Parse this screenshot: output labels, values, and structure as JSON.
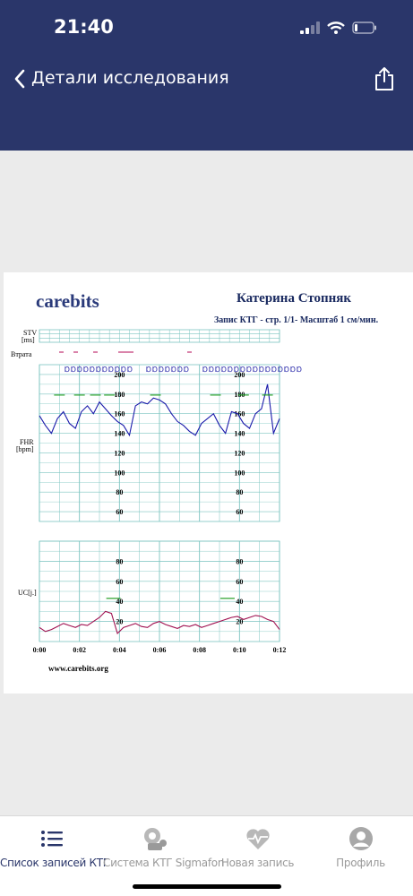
{
  "status": {
    "time": "21:40"
  },
  "nav": {
    "title": "Детали исследования"
  },
  "report": {
    "logo": "carebits",
    "patient_name": "Катерина  Стопняк",
    "subtitle": "Запис КТГ  - стр. 1/1- Масштаб 1 см/мин.",
    "stv_label": "STV",
    "stv_unit": "[ms]",
    "loss_label": "Втрата",
    "fhr_label": "FHR",
    "fhr_unit": "[bpm]",
    "uc_label": "UC[j.]",
    "website": "www.carebits.org"
  },
  "chart_data": [
    {
      "type": "line",
      "name": "FHR",
      "ylabel": "FHR [bpm]",
      "ylim": [
        50,
        210
      ],
      "xlim": [
        0,
        12
      ],
      "yticks": [
        200,
        180,
        160,
        140,
        120,
        100,
        80,
        60
      ],
      "x": [
        0,
        0.3,
        0.6,
        0.9,
        1.2,
        1.5,
        1.8,
        2.1,
        2.4,
        2.7,
        3.0,
        3.3,
        3.6,
        3.9,
        4.2,
        4.5,
        4.8,
        5.1,
        5.4,
        5.7,
        6.0,
        6.3,
        6.6,
        6.9,
        7.2,
        7.5,
        7.8,
        8.1,
        8.4,
        8.7,
        9.0,
        9.3,
        9.6,
        9.9,
        10.2,
        10.5,
        10.8,
        11.1,
        11.4,
        11.7,
        12.0
      ],
      "series": [
        {
          "values": [
            158,
            148,
            140,
            155,
            162,
            150,
            145,
            162,
            168,
            160,
            172,
            165,
            158,
            152,
            148,
            138,
            168,
            172,
            170,
            176,
            174,
            170,
            160,
            152,
            148,
            142,
            138,
            150,
            155,
            160,
            148,
            140,
            162,
            160,
            150,
            145,
            160,
            165,
            190,
            140,
            155
          ]
        }
      ],
      "accel_marks": [
        1.0,
        2.0,
        2.8,
        3.5,
        5.8,
        8.8,
        10.2,
        11.4
      ]
    },
    {
      "type": "line",
      "name": "UC",
      "ylabel": "UC[j.]",
      "ylim": [
        0,
        100
      ],
      "xlim": [
        0,
        12
      ],
      "yticks": [
        80,
        60,
        40,
        20
      ],
      "xticks": [
        "0:00",
        "0:02",
        "0:04",
        "0:06",
        "0:08",
        "0:10",
        "0:12"
      ],
      "x": [
        0,
        0.3,
        0.6,
        0.9,
        1.2,
        1.5,
        1.8,
        2.1,
        2.4,
        2.7,
        3.0,
        3.3,
        3.6,
        3.9,
        4.2,
        4.5,
        4.8,
        5.1,
        5.4,
        5.7,
        6.0,
        6.3,
        6.6,
        6.9,
        7.2,
        7.5,
        7.8,
        8.1,
        8.4,
        8.7,
        9.0,
        9.3,
        9.6,
        9.9,
        10.2,
        10.5,
        10.8,
        11.1,
        11.4,
        11.7,
        12.0
      ],
      "series": [
        {
          "values": [
            14,
            10,
            12,
            15,
            18,
            16,
            14,
            17,
            16,
            20,
            24,
            30,
            28,
            8,
            14,
            16,
            18,
            15,
            14,
            18,
            20,
            17,
            15,
            13,
            16,
            15,
            17,
            14,
            16,
            18,
            20,
            22,
            24,
            25,
            22,
            24,
            26,
            25,
            22,
            20,
            12
          ]
        }
      ]
    }
  ],
  "tabs": [
    {
      "label": "Список записей КТГ",
      "icon": "list-icon",
      "active": true
    },
    {
      "label": "Система КТГ Sigmafon",
      "icon": "device-icon",
      "active": false
    },
    {
      "label": "Новая запись",
      "icon": "heart-pulse-icon",
      "active": false
    },
    {
      "label": "Профиль",
      "icon": "profile-icon",
      "active": false
    }
  ],
  "colors": {
    "header_bg": "#2a366a",
    "fhr_line": "#1a1aaa",
    "uc_line": "#a01050",
    "grid": "#7cc4c0",
    "tab_active": "#2a366a",
    "tab_inactive": "#9a9a9a"
  }
}
